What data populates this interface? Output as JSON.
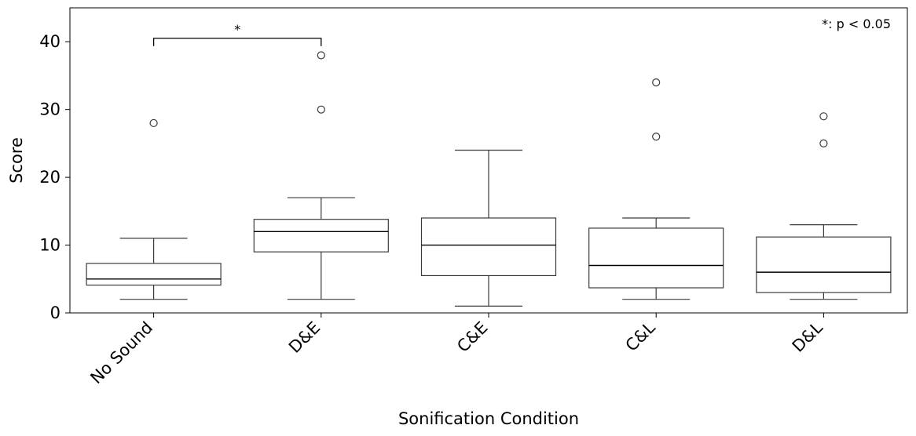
{
  "chart_data": {
    "type": "boxplot",
    "xlabel": "Sonification Condition",
    "ylabel": "Score",
    "ylim": [
      0,
      45
    ],
    "yticks": [
      "0",
      "10",
      "20",
      "30",
      "40"
    ],
    "categories": [
      "No Sound",
      "D&E",
      "C&E",
      "C&L",
      "D&L"
    ],
    "boxes": [
      {
        "whisker_low": 2,
        "q1": 4.1,
        "median": 5,
        "q3": 7.3,
        "whisker_high": 11,
        "outliers": [
          28
        ]
      },
      {
        "whisker_low": 2,
        "q1": 9,
        "median": 12,
        "q3": 13.8,
        "whisker_high": 17,
        "outliers": [
          30,
          38
        ]
      },
      {
        "whisker_low": 1,
        "q1": 5.5,
        "median": 10,
        "q3": 14,
        "whisker_high": 24,
        "outliers": []
      },
      {
        "whisker_low": 2,
        "q1": 3.7,
        "median": 7,
        "q3": 12.5,
        "whisker_high": 14,
        "outliers": [
          26,
          34
        ]
      },
      {
        "whisker_low": 2,
        "q1": 3,
        "median": 6,
        "q3": 11.2,
        "whisker_high": 13,
        "outliers": [
          25,
          29
        ]
      }
    ],
    "significance": {
      "from": "No Sound",
      "to": "D&E",
      "y": 40.5,
      "label": "*"
    },
    "annotation": "*: p < 0.05",
    "legend": "none",
    "grid": false
  }
}
